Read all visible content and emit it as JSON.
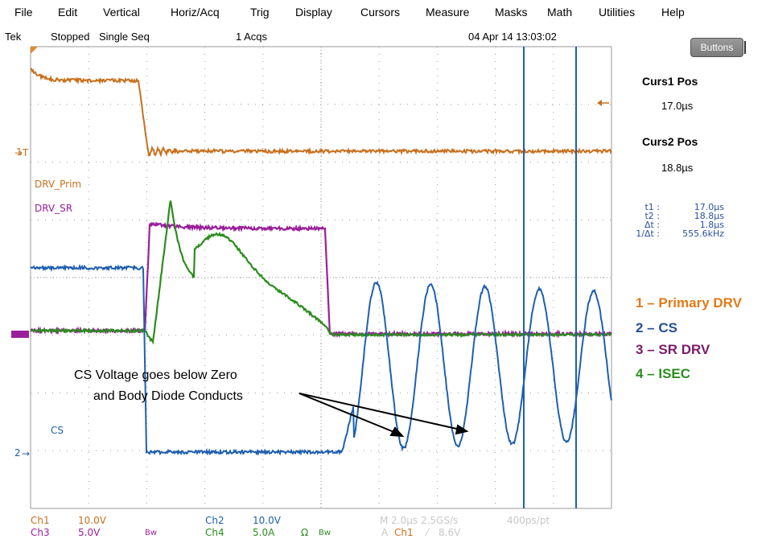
{
  "menu": [
    "File",
    "Edit",
    "Vertical",
    "Horiz/Acq",
    "Trig",
    "Display",
    "Cursors",
    "Measure",
    "Masks",
    "Math",
    "Utilities",
    "Help"
  ],
  "status": {
    "brand": "Tek",
    "state": "Stopped",
    "mode": "Single Seq",
    "acqs": "1 Acqs",
    "datetime": "04 Apr 14 13:03:02"
  },
  "buttons_label": "Buttons",
  "cursors": {
    "c1_title": "Curs1 Pos",
    "c1_value": "17.0µs",
    "c2_title": "Curs2 Pos",
    "c2_value": "18.8µs"
  },
  "measurements": [
    {
      "k": "t1 :",
      "v": "17.0µs"
    },
    {
      "k": "t2 :",
      "v": "18.8µs"
    },
    {
      "k": "Δt :",
      "v": "1.8µs"
    },
    {
      "k": "1/Δt :",
      "v": "555.6kHz"
    }
  ],
  "legend": [
    {
      "label": "1 – Primary DRV",
      "color": "#e07b1a"
    },
    {
      "label": "2 – CS",
      "color": "#264f91"
    },
    {
      "label": "3 – SR DRV",
      "color": "#7a1c6b"
    },
    {
      "label": "4 – ISEC",
      "color": "#2d8c1f"
    }
  ],
  "trace_labels": {
    "drv_prim": "DRV_Prim",
    "drv_sr": "DRV_SR",
    "cs": "CS",
    "ch1_marker": "1",
    "ch2_marker": "2"
  },
  "annotation": {
    "line1": "CS Voltage goes below Zero",
    "line2": "and Body Diode Conducts"
  },
  "channels": {
    "ch1": "Ch1",
    "ch1_scale": "10.0V",
    "ch2": "Ch2",
    "ch2_scale": "10.0V",
    "ch3": "Ch3",
    "ch3_scale": "5.0V",
    "ch4": "Ch4",
    "ch4_scale": "5.0A",
    "bw": "Bw",
    "ohm": "Ω",
    "timebase": "M 2.0µs 2.5GS/s",
    "rate": "400ps/pt",
    "trigger_a": "A",
    "trigger_ch": "Ch1",
    "trigger_slope": "⁄",
    "trigger_level": "8.6V"
  },
  "colors": {
    "ch1": "#c8701e",
    "ch2": "#1f5fb0",
    "ch3": "#9a1f9a",
    "ch4": "#2d8c1f",
    "grid": "#9a9a9a"
  }
}
